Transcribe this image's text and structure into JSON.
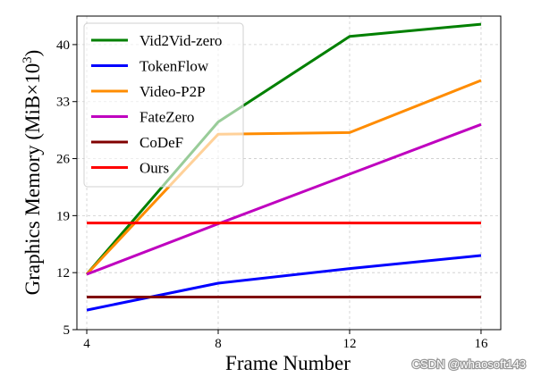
{
  "watermark": "CSDN @whaosoft143",
  "chart_data": {
    "type": "line",
    "xlabel": "Frame Number",
    "ylabel": "Graphics Memory (MiB×10",
    "ylabel_exp": "3",
    "ylabel_close": ")",
    "x": [
      4,
      8,
      12,
      16
    ],
    "xticks": [
      "4",
      "8",
      "12",
      "16"
    ],
    "yticks": [
      "5",
      "12",
      "19",
      "26",
      "33",
      "40"
    ],
    "xlim": [
      3.7,
      16.6
    ],
    "ylim": [
      5,
      43.5
    ],
    "grid": true,
    "legend_position": "upper-left",
    "series": [
      {
        "name": "Vid2Vid-zero",
        "color": "#008000",
        "values": [
          11.8,
          30.5,
          41.0,
          42.5
        ]
      },
      {
        "name": "TokenFlow",
        "color": "#0000ff",
        "values": [
          7.4,
          10.7,
          12.5,
          14.1
        ]
      },
      {
        "name": "Video-P2P",
        "color": "#ff8c00",
        "values": [
          11.8,
          29.0,
          29.2,
          35.6
        ]
      },
      {
        "name": "FateZero",
        "color": "#bf00bf",
        "values": [
          11.8,
          18.0,
          24.1,
          30.2
        ]
      },
      {
        "name": "CoDeF",
        "color": "#800000",
        "values": [
          9.0,
          9.0,
          9.0,
          9.0
        ]
      },
      {
        "name": "Ours",
        "color": "#ff0000",
        "values": [
          18.1,
          18.1,
          18.1,
          18.1
        ]
      }
    ]
  }
}
